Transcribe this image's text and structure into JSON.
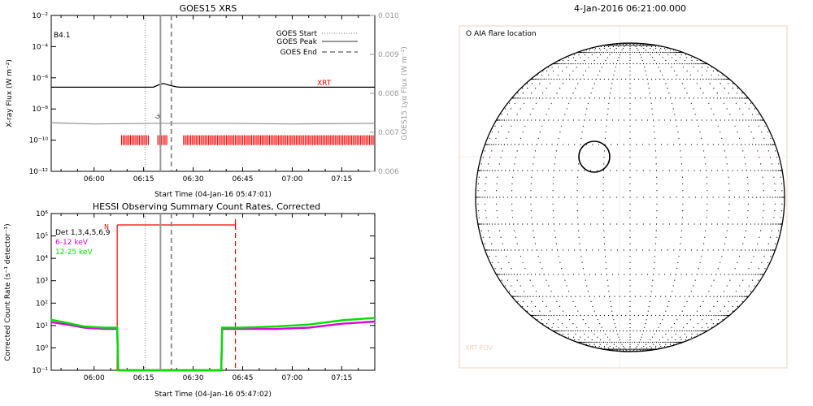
{
  "goes_panel": {
    "title": "GOES15 XRS",
    "class_label": "B4.1",
    "xlabel": "Start Time (04-Jan-16 05:47:01)",
    "ylabel_left": "X-ray Flux (W m⁻²)",
    "ylabel_right": "GOES15 Lyα Flux (W m⁻²)",
    "legend": [
      {
        "label": "GOES Start",
        "style": "dotted"
      },
      {
        "label": "GOES Peak",
        "style": "solid"
      },
      {
        "label": "GOES End",
        "style": "dashed"
      }
    ],
    "xrt_label": "XRT",
    "lya_marker": "Ly",
    "colors": {
      "xrt": "#ff0000",
      "lya": "#9a9a9a",
      "flux": "#000000",
      "axis": "#000000",
      "right_axis": "#9a9a9a"
    }
  },
  "hessi_panel": {
    "title": "HESSI Observing Summary Count Rates, Corrected",
    "xlabel": "Start Time (04-Jan-16 05:47:02)",
    "ylabel": "Corrected Count Rate (s⁻¹ detector⁻¹)",
    "legend": [
      {
        "label": "Det 1,3,4,5,6,9",
        "color": "#000000"
      },
      {
        "label": "6-12 keV",
        "color": "#e000e0"
      },
      {
        "label": "12-25 keV",
        "color": "#00e000"
      }
    ],
    "night_marker": "N",
    "colors": {
      "band_6_12": "#e000e0",
      "band_12_25": "#00e000",
      "night": "#ff0000"
    }
  },
  "sun_panel": {
    "title": "4-Jan-2016 06:21:00.000",
    "legend": "O AIA flare location",
    "fov_label": "XRT FOV",
    "colors": {
      "disk": "#000000",
      "fov": "#f0d0c0"
    }
  },
  "chart_data": [
    {
      "type": "line",
      "title": "GOES15 XRS",
      "xlabel": "Start Time (04-Jan-16 05:47:01)",
      "xtick_labels": [
        "06:00",
        "06:15",
        "06:30",
        "06:45",
        "07:00",
        "07:15"
      ],
      "xtick_minutes": [
        0,
        15,
        30,
        45,
        60,
        75
      ],
      "xlim_minutes": [
        -12.98,
        85.0
      ],
      "y_scale": "log",
      "ylim": [
        1e-12,
        0.01
      ],
      "ytick_labels": [
        "10⁻¹²",
        "10⁻¹⁰",
        "10⁻⁸",
        "10⁻⁶",
        "10⁻⁴",
        "10⁻²"
      ],
      "ytick_values": [
        1e-12,
        1e-10,
        1e-08,
        1e-06,
        0.0001,
        0.01
      ],
      "y2lim": [
        0.006,
        0.01
      ],
      "y2tick_labels": [
        "0.006",
        "0.007",
        "0.008",
        "0.009",
        "0.010"
      ],
      "y2tick_values": [
        0.006,
        0.007,
        0.008,
        0.009,
        0.01
      ],
      "event_lines_minutes": {
        "start": 15.5,
        "peak": 20.1,
        "end": 23.4
      },
      "series": [
        {
          "name": "",
          "color": "#000000",
          "x": [
            -13,
            18,
            19.5,
            21,
            23,
            25,
            26,
            85
          ],
          "y": [
            2.5e-07,
            2.5e-07,
            3.5e-07,
            4.3e-07,
            3.2e-07,
            2.6e-07,
            2.5e-07,
            2.5e-07
          ]
        },
        {
          "name": "",
          "color": "#9a9a9a",
          "x": [
            -13,
            0,
            20,
            40,
            60,
            85
          ],
          "y": [
            1.3e-09,
            1.1e-09,
            1.2e-09,
            1.2e-09,
            1.1e-09,
            1.2e-09
          ]
        }
      ],
      "xrt_intervals_minutes": [
        [
          8.3,
          16.6
        ],
        [
          19.3,
          22.2
        ],
        [
          27.1,
          85.0
        ]
      ],
      "xrt_level": 1e-10
    },
    {
      "type": "line",
      "title": "HESSI Observing Summary Count Rates, Corrected",
      "xlabel": "Start Time (04-Jan-16 05:47:02)",
      "xtick_labels": [
        "06:00",
        "06:15",
        "06:30",
        "06:45",
        "07:00",
        "07:15"
      ],
      "xtick_minutes": [
        0,
        15,
        30,
        45,
        60,
        75
      ],
      "xlim_minutes": [
        -12.98,
        85.0
      ],
      "y_scale": "log",
      "ylim": [
        0.1,
        1000000.0
      ],
      "ytick_labels": [
        "10⁻¹",
        "10⁰",
        "10¹",
        "10²",
        "10³",
        "10⁴",
        "10⁵",
        "10⁶"
      ],
      "ytick_values": [
        0.1,
        1,
        10,
        100,
        1000,
        10000,
        100000,
        1000000
      ],
      "event_lines_minutes": {
        "start": 15.5,
        "peak": 20.1,
        "end": 23.4
      },
      "night_interval_minutes": [
        7.0,
        42.8
      ],
      "series": [
        {
          "name": "6-12 keV",
          "color": "#e000e0",
          "x": [
            -13,
            -8,
            -3,
            3,
            7,
            7.3,
            38.5,
            38.8,
            45,
            55,
            65,
            75,
            85
          ],
          "y": [
            14,
            11,
            8,
            7,
            7,
            0.1,
            0.1,
            7,
            7,
            7,
            8,
            12,
            15
          ]
        },
        {
          "name": "12-25 keV",
          "color": "#00e000",
          "x": [
            -13,
            -8,
            -3,
            3,
            7,
            7.3,
            38.5,
            38.8,
            45,
            55,
            65,
            75,
            85
          ],
          "y": [
            18,
            13,
            9,
            8,
            8,
            0.1,
            0.1,
            8,
            8,
            9,
            11,
            17,
            22
          ]
        }
      ]
    }
  ]
}
